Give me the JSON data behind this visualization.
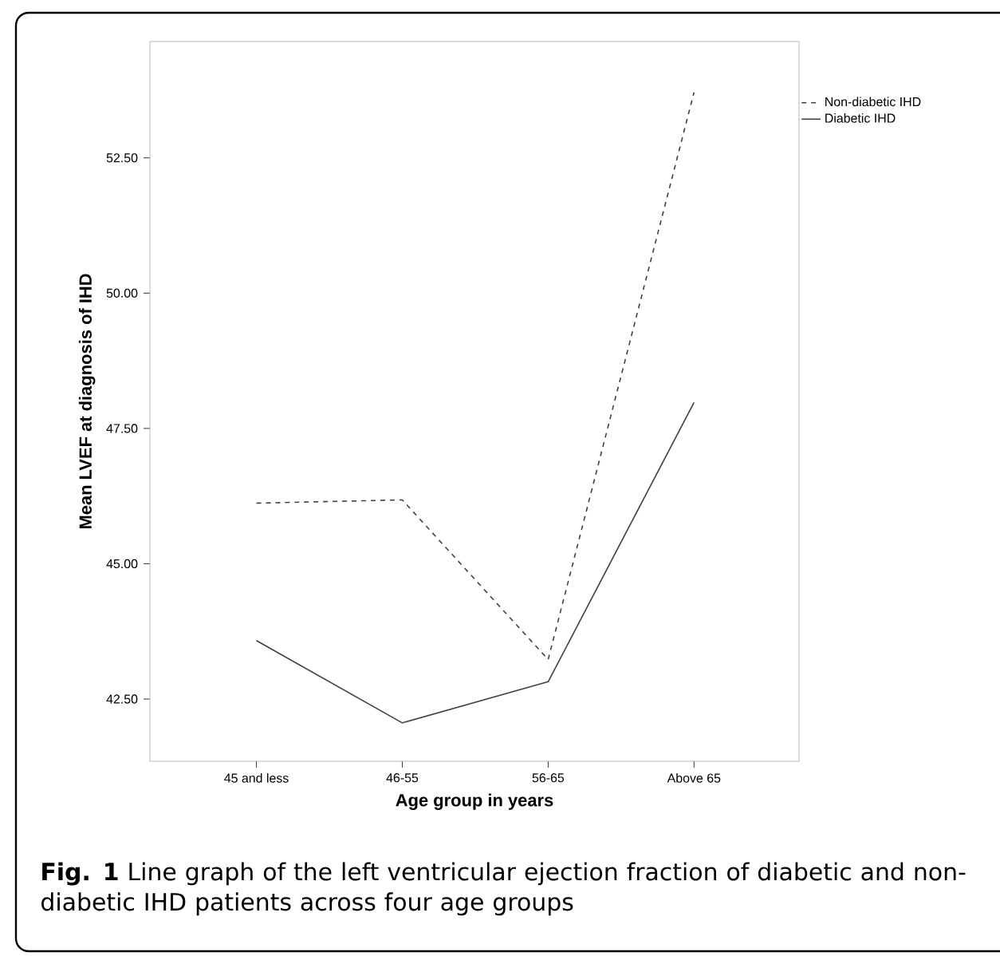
{
  "chart_data": {
    "type": "line",
    "xlabel": "Age group in years",
    "ylabel": "Mean LVEF at diagnosis of IHD",
    "categories": [
      "45 and less",
      "46-55",
      "56-65",
      "Above 65"
    ],
    "series": [
      {
        "name": "Non-diabetic IHD",
        "color": "#404040",
        "line_style": "dashed",
        "values": [
          46.12,
          46.18,
          43.23,
          53.71
        ]
      },
      {
        "name": "Diabetic IHD",
        "color": "#404040",
        "line_style": "solid",
        "values": [
          43.58,
          42.06,
          42.82,
          47.98
        ]
      }
    ],
    "ylim": [
      41.35,
      54.65
    ],
    "yticks": [
      {
        "value": 42.5,
        "label": "42.50"
      },
      {
        "value": 45,
        "label": "45.00"
      },
      {
        "value": 47.5,
        "label": "47.50"
      },
      {
        "value": 50,
        "label": "50.00"
      },
      {
        "value": 52.5,
        "label": "52.50"
      }
    ],
    "legend": "top right",
    "grid": false,
    "marker": "none",
    "annotations": [
      "**Fig. 1** Line graph of the left ventricular ejection fraction of diabetic and non-diabetic IHD patients across four age groups"
    ]
  }
}
